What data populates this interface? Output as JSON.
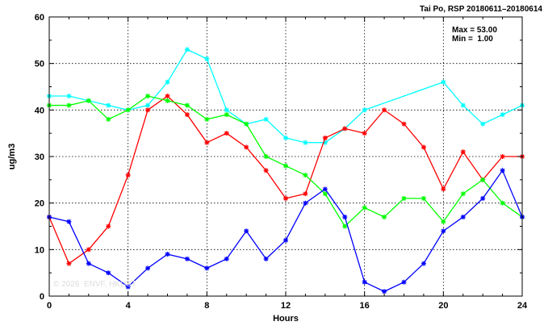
{
  "chart_data": {
    "type": "line",
    "title": "Tai Po, RSP 20180611–20180614",
    "xlabel": "Hours",
    "ylabel": "ug/m3",
    "xlim": [
      0,
      24
    ],
    "ylim": [
      0,
      60
    ],
    "xticks": [
      0,
      4,
      8,
      12,
      16,
      20,
      24
    ],
    "yticks": [
      0,
      10,
      20,
      30,
      40,
      50,
      60
    ],
    "grid": true,
    "stats": {
      "max": "Max = 53.00",
      "min": "Min =  1.00"
    },
    "watermark": "© 2026  ENVF, HKUST",
    "series": [
      {
        "color": "#00ffff",
        "points": [
          [
            0,
            43
          ],
          [
            1,
            43
          ],
          [
            2,
            42
          ],
          [
            3,
            41
          ],
          [
            4,
            40
          ],
          [
            5,
            41
          ],
          [
            6,
            46
          ],
          [
            7,
            53
          ],
          [
            8,
            51
          ],
          [
            9,
            40
          ],
          [
            10,
            37
          ],
          [
            11,
            38
          ],
          [
            12,
            34
          ],
          [
            13,
            33
          ],
          [
            14,
            33
          ],
          [
            15,
            36
          ],
          [
            16,
            40
          ],
          [
            20,
            46
          ],
          [
            21,
            41
          ],
          [
            22,
            37
          ],
          [
            23,
            39
          ],
          [
            24,
            41
          ]
        ]
      },
      {
        "color": "#ff0000",
        "points": [
          [
            0,
            17
          ],
          [
            1,
            7
          ],
          [
            2,
            10
          ],
          [
            3,
            15
          ],
          [
            4,
            26
          ],
          [
            5,
            40
          ],
          [
            6,
            43
          ],
          [
            7,
            39
          ],
          [
            8,
            33
          ],
          [
            9,
            35
          ],
          [
            10,
            32
          ],
          [
            11,
            27
          ],
          [
            12,
            21
          ],
          [
            13,
            22
          ],
          [
            14,
            34
          ],
          [
            15,
            36
          ],
          [
            16,
            35
          ],
          [
            17,
            40
          ],
          [
            18,
            37
          ],
          [
            19,
            32
          ],
          [
            20,
            23
          ],
          [
            21,
            31
          ],
          [
            22,
            25
          ],
          [
            23,
            30
          ],
          [
            24,
            30
          ]
        ]
      },
      {
        "color": "#00ff00",
        "points": [
          [
            0,
            41
          ],
          [
            1,
            41
          ],
          [
            2,
            42
          ],
          [
            3,
            38
          ],
          [
            4,
            40
          ],
          [
            5,
            43
          ],
          [
            6,
            42
          ],
          [
            7,
            41
          ],
          [
            8,
            38
          ],
          [
            9,
            39
          ],
          [
            10,
            37
          ],
          [
            11,
            30
          ],
          [
            12,
            28
          ],
          [
            13,
            26
          ],
          [
            14,
            22
          ],
          [
            15,
            15
          ],
          [
            16,
            19
          ],
          [
            17,
            17
          ],
          [
            18,
            21
          ],
          [
            19,
            21
          ],
          [
            20,
            16
          ],
          [
            21,
            22
          ],
          [
            22,
            25
          ],
          [
            23,
            20
          ],
          [
            24,
            17
          ]
        ]
      },
      {
        "color": "#0000ff",
        "points": [
          [
            0,
            17
          ],
          [
            1,
            16
          ],
          [
            2,
            7
          ],
          [
            3,
            5
          ],
          [
            4,
            2
          ],
          [
            5,
            6
          ],
          [
            6,
            9
          ],
          [
            7,
            8
          ],
          [
            8,
            6
          ],
          [
            9,
            8
          ],
          [
            10,
            14
          ],
          [
            11,
            8
          ],
          [
            12,
            12
          ],
          [
            13,
            20
          ],
          [
            14,
            23
          ],
          [
            15,
            17
          ],
          [
            16,
            3
          ],
          [
            17,
            1
          ],
          [
            18,
            3
          ],
          [
            19,
            7
          ],
          [
            20,
            14
          ],
          [
            21,
            17
          ],
          [
            22,
            21
          ],
          [
            23,
            27
          ],
          [
            24,
            17
          ]
        ]
      }
    ]
  }
}
